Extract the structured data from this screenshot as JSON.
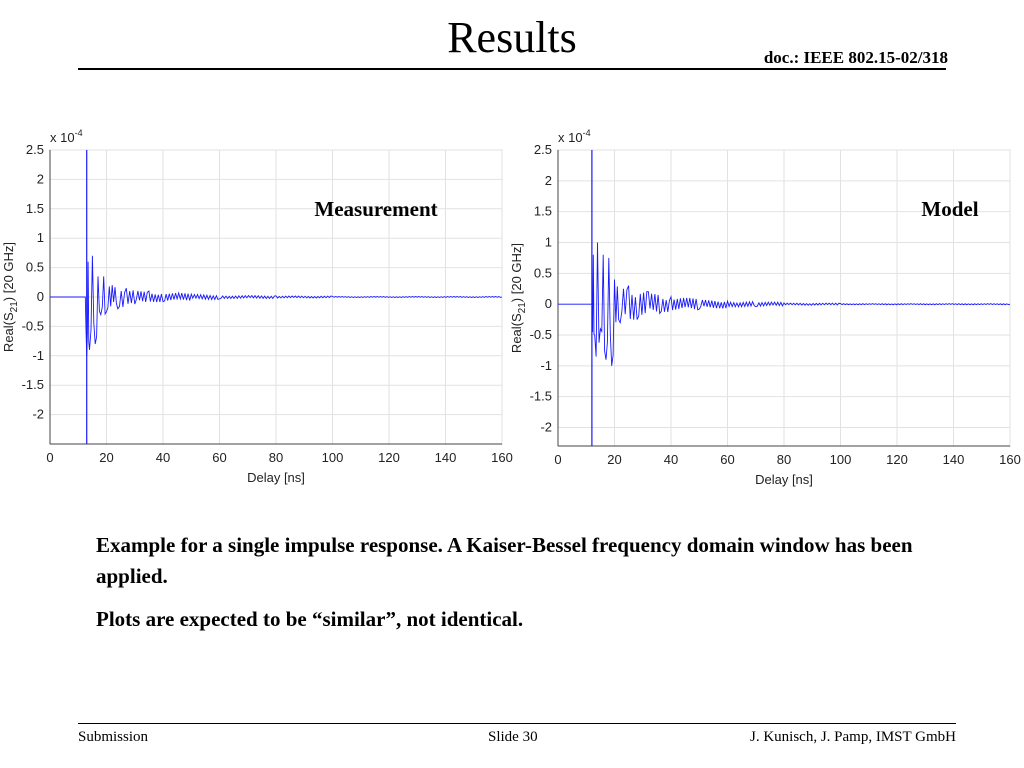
{
  "slide": {
    "title": "Results",
    "doc_id": "doc.: IEEE 802.15-02/318",
    "paragraphs": [
      "Example for a single impulse response. A Kaiser-Bessel frequency domain window has been applied.",
      "Plots are expected to be “similar”, not identical."
    ],
    "footer": {
      "left": "Submission",
      "center": "Slide 30",
      "right": "J. Kunisch, J. Pamp, IMST GmbH"
    }
  },
  "chart_data": [
    {
      "type": "line",
      "annotation": "Measurement",
      "xlabel": "Delay [ns]",
      "ylabel_main": "Real(S",
      "ylabel_sub": "21",
      "ylabel_end": ") [20 GHz]",
      "exponent_base": "x 10",
      "exponent_power": "-4",
      "xlim": [
        0,
        160
      ],
      "ylim": [
        -2.5,
        2.5
      ],
      "xticks": [
        "0",
        "20",
        "40",
        "60",
        "80",
        "100",
        "120",
        "140",
        "160"
      ],
      "yticks": [
        "2.5",
        "2",
        "1.5",
        "1",
        "0.5",
        "0",
        "-0.5",
        "-1",
        "-1.5",
        "-2"
      ],
      "grid": true,
      "line_color": "#1a1aff",
      "series": [
        {
          "x": [
            0,
            12.5,
            13.0,
            13.5,
            14,
            15,
            16,
            17,
            18,
            19,
            20,
            22,
            24,
            27,
            30,
            35,
            40,
            50,
            60,
            80,
            100,
            160
          ],
          "y": [
            0,
            0,
            -1.0,
            0.6,
            -0.9,
            0.7,
            -0.8,
            0.35,
            -0.3,
            0.35,
            -0.25,
            0.2,
            -0.2,
            0.15,
            -0.12,
            0.1,
            -0.08,
            0.05,
            -0.03,
            0.02,
            0.01,
            0
          ]
        }
      ],
      "spike": {
        "x": 13.0,
        "y_min": -2.5,
        "y_max": 2.5
      }
    },
    {
      "type": "line",
      "annotation": "Model",
      "xlabel": "Delay [ns]",
      "ylabel_main": "Real(S",
      "ylabel_sub": "21",
      "ylabel_end": ") [20 GHz]",
      "exponent_base": "x 10",
      "exponent_power": "-4",
      "xlim": [
        0,
        160
      ],
      "ylim": [
        -2.3,
        2.5
      ],
      "xticks": [
        "0",
        "20",
        "40",
        "60",
        "80",
        "100",
        "120",
        "140",
        "160"
      ],
      "yticks": [
        "2.5",
        "2",
        "1.5",
        "1",
        "0.5",
        "0",
        "-0.5",
        "-1",
        "-1.5",
        "-2"
      ],
      "grid": true,
      "line_color": "#1a1aff",
      "series": [
        {
          "x": [
            0,
            12,
            12.5,
            13,
            14,
            15,
            16,
            17,
            18,
            19,
            20,
            22,
            25,
            28,
            32,
            36,
            40,
            50,
            60,
            70,
            80,
            100,
            160
          ],
          "y": [
            0,
            0,
            0.8,
            -0.5,
            1.0,
            -0.4,
            0.8,
            -0.9,
            0.75,
            -1.0,
            0.4,
            -0.3,
            0.3,
            -0.25,
            0.2,
            -0.15,
            0.12,
            -0.08,
            0.05,
            -0.04,
            0.02,
            0.01,
            0
          ]
        }
      ],
      "spike": {
        "x": 12.0,
        "y_min": -2.3,
        "y_max": 2.5
      }
    }
  ]
}
